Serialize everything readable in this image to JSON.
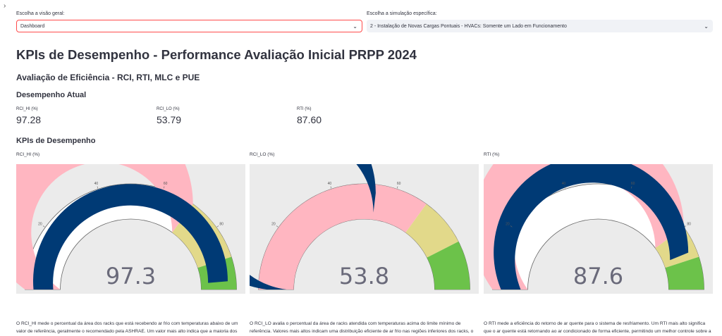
{
  "selectors": {
    "left": {
      "label": "Escolha a visão geral:",
      "value": "Dashboard"
    },
    "right": {
      "label": "Escolha a simulação específica:",
      "value": "2 - Instalação de Novas Cargas Pontuais - HVACs: Somente um Lado em Funcionamento"
    }
  },
  "title": "KPIs de Desempenho - Performance Avaliação Inicial PRPP 2024",
  "subtitle": "Avaliação de Eficiência - RCI, RTI, MLC e PUE",
  "current_header": "Desempenho Atual",
  "kpi_header": "KPIs de Desempenho",
  "metrics": [
    {
      "label": "RCI_HI (%)",
      "value": "97.28"
    },
    {
      "label": "RCI_LO (%)",
      "value": "53.79"
    },
    {
      "label": "RTI (%)",
      "value": "87.60"
    }
  ],
  "gauges": [
    {
      "title": "RCI_HI (%)",
      "number": "97.3",
      "value": 97.28,
      "range": [
        0,
        100
      ],
      "ticks": [
        "20",
        "40",
        "60",
        "80"
      ],
      "steps": [
        {
          "from": 0,
          "to": 70,
          "color": "#ffb6c1"
        },
        {
          "from": 70,
          "to": 90,
          "color": "#e2d98a"
        },
        {
          "from": 90,
          "to": 100,
          "color": "#6cc24a"
        }
      ],
      "bar_color": "#003a75",
      "description": "O RCI_HI mede o percentual da área dos racks que está recebendo ar frio com temperaturas abaixo de um valor de referência, geralmente o recomendado pela ASHRAE. Um valor mais alto indica que a maioria dos racks está sendo adequadamente resfriada, atendendo aos padrões recomendados para temperaturas"
    },
    {
      "title": "RCI_LO (%)",
      "number": "53.8",
      "value": 53.79,
      "range": [
        0,
        100
      ],
      "ticks": [
        "20",
        "40",
        "60"
      ],
      "steps": [
        {
          "from": 0,
          "to": 50,
          "color": "#ffb6c1"
        },
        {
          "from": 50,
          "to": 70,
          "color": "#ffb6c1"
        },
        {
          "from": 70,
          "to": 85,
          "color": "#e2d98a"
        },
        {
          "from": 85,
          "to": 100,
          "color": "#6cc24a"
        }
      ],
      "bar_color": "#003a75",
      "description": "O RCI_LO avalia o percentual da área de racks atendida com temperaturas acima do limite mínimo de referência. Valores mais altos indicam uma distribuição eficiente de ar frio nas regiões inferiores dos racks, o que ajuda a garantir que os equipamentos não fiquem abaixo do limite de temperatura."
    },
    {
      "title": "RTI (%)",
      "number": "87.6",
      "value": 87.6,
      "range": [
        0,
        100
      ],
      "ticks": [
        "20",
        "40",
        "60",
        "80"
      ],
      "steps": [
        {
          "from": 0,
          "to": 80,
          "color": "#ffb6c1"
        },
        {
          "from": 80,
          "to": 90,
          "color": "#e2d98a"
        },
        {
          "from": 90,
          "to": 100,
          "color": "#6cc24a"
        }
      ],
      "bar_color": "#003a75",
      "description": "O RTI mede a eficiência do retorno de ar quente para o sistema de resfriamento. Um RTI mais alto significa que o ar quente está retornando ao ar condicionado de forma eficiente, permitindo um melhor controle sobre a circulação de ar e a capacidade de resfriamento do ambiente."
    }
  ],
  "colors": {
    "focus_border": "#ff4b4b",
    "gauge_bar": "#003a75",
    "chart_bg": "#ebebeb"
  }
}
